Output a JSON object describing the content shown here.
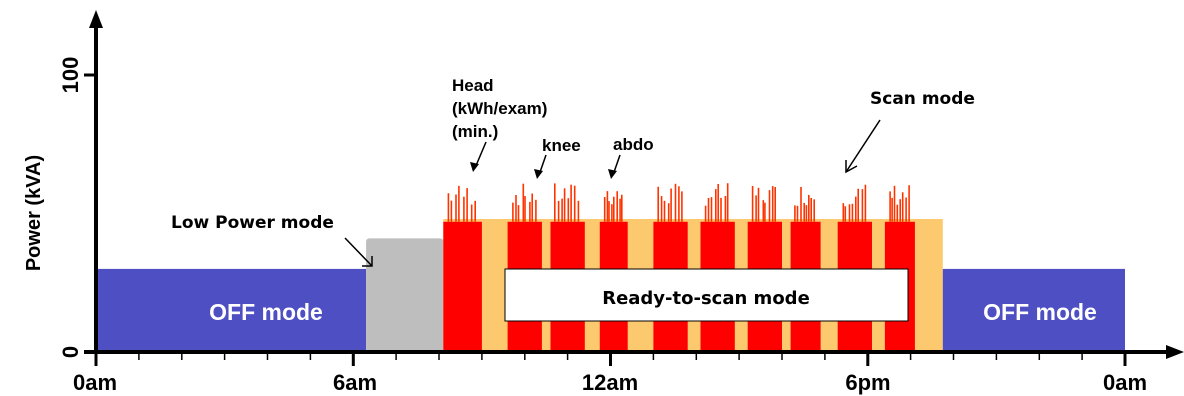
{
  "chart_data": {
    "type": "area",
    "ylabel": "Power (kVA)",
    "xlabel": "",
    "y_ticks": [
      "0",
      "100"
    ],
    "x_ticks": [
      "0am",
      "6am",
      "12am",
      "6pm",
      "0am"
    ],
    "xlim_hours": [
      0,
      24
    ],
    "ylim": [
      0,
      100
    ],
    "colors": {
      "off": "#4f4fc4",
      "low_power": "#bebebe",
      "ready": "#fcc96e",
      "scan": "#ff0000",
      "spike": "#ff3300"
    },
    "segments": [
      {
        "mode": "off",
        "start_h": 0,
        "end_h": 6.3,
        "power": 30
      },
      {
        "mode": "low_power",
        "start_h": 6.3,
        "end_h": 8.1,
        "power": 41
      },
      {
        "mode": "ready",
        "start_h": 8.1,
        "end_h": 19.75,
        "power": 48
      },
      {
        "mode": "off",
        "start_h": 19.75,
        "end_h": 24,
        "power": 30
      }
    ],
    "scan_blocks": [
      {
        "start_h": 8.1,
        "end_h": 9.0
      },
      {
        "start_h": 9.6,
        "end_h": 10.4
      },
      {
        "start_h": 10.6,
        "end_h": 11.4
      },
      {
        "start_h": 11.75,
        "end_h": 12.4
      },
      {
        "start_h": 13.0,
        "end_h": 13.8
      },
      {
        "start_h": 14.1,
        "end_h": 14.9
      },
      {
        "start_h": 15.2,
        "end_h": 16.0
      },
      {
        "start_h": 16.2,
        "end_h": 16.9
      },
      {
        "start_h": 17.3,
        "end_h": 18.1
      },
      {
        "start_h": 18.4,
        "end_h": 19.1
      }
    ],
    "scan_power": 47,
    "spike_max_power": 61,
    "labels": {
      "off_left": "OFF mode",
      "off_right": "OFF mode",
      "ready": "Ready-to-scan mode",
      "low_power": "Low Power mode",
      "scan": "Scan mode",
      "head": [
        "Head",
        "(kWh/exam)",
        "(min.)"
      ],
      "knee": "knee",
      "abdo": "abdo"
    }
  }
}
